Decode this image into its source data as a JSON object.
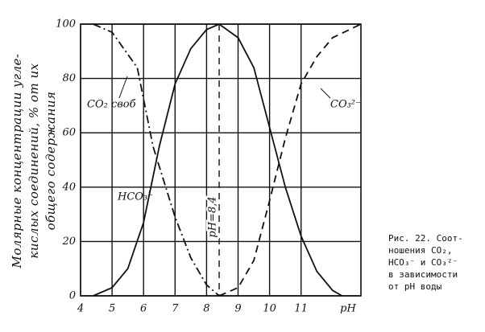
{
  "chart_data": {
    "type": "line",
    "ylabel": [
      "Молярные концентрации угле-",
      "кислых соединений, % от их",
      "общего содержания"
    ],
    "xlabel": "pH",
    "xlim": [
      4,
      12.9
    ],
    "xticks": [
      4,
      5,
      6,
      7,
      8,
      9,
      10,
      11
    ],
    "ylim": [
      0,
      100
    ],
    "yticks": [
      0,
      20,
      40,
      60,
      80,
      100
    ],
    "grid": true,
    "series": [
      {
        "name": "CO₂ своб",
        "color": "#111",
        "dash": "dashdot",
        "x": [
          4.4,
          5,
          5.8,
          6.3,
          7,
          7.5,
          8,
          8.4
        ],
        "values": [
          100,
          97,
          84,
          55,
          29,
          14,
          4,
          0
        ]
      },
      {
        "name": "HCO₃⁻",
        "color": "#111",
        "dash": "solid",
        "x": [
          4.4,
          5,
          5.5,
          6,
          6.5,
          7,
          7.5,
          8,
          8.4,
          9,
          9.5,
          10,
          10.5,
          11,
          11.5,
          12,
          12.3
        ],
        "values": [
          0,
          3,
          10,
          27,
          55,
          78,
          91,
          98,
          100,
          95,
          84,
          62,
          40,
          22,
          9,
          2,
          0
        ]
      },
      {
        "name": "CO₃²⁻",
        "color": "#111",
        "dash": "dashed",
        "x": [
          8.4,
          9,
          9.5,
          10,
          10.5,
          11,
          11.5,
          12,
          12.9
        ],
        "values": [
          0,
          3,
          13,
          35,
          58,
          78,
          88,
          95,
          100
        ]
      }
    ],
    "vline": {
      "x": 8.4,
      "label": "pH=8,4"
    },
    "caption": [
      "Рис. 22. Соот-",
      "ношения CO₂,",
      "HCO₃⁻ и CO₃²⁻",
      "в зависимости",
      "от pH воды"
    ]
  }
}
